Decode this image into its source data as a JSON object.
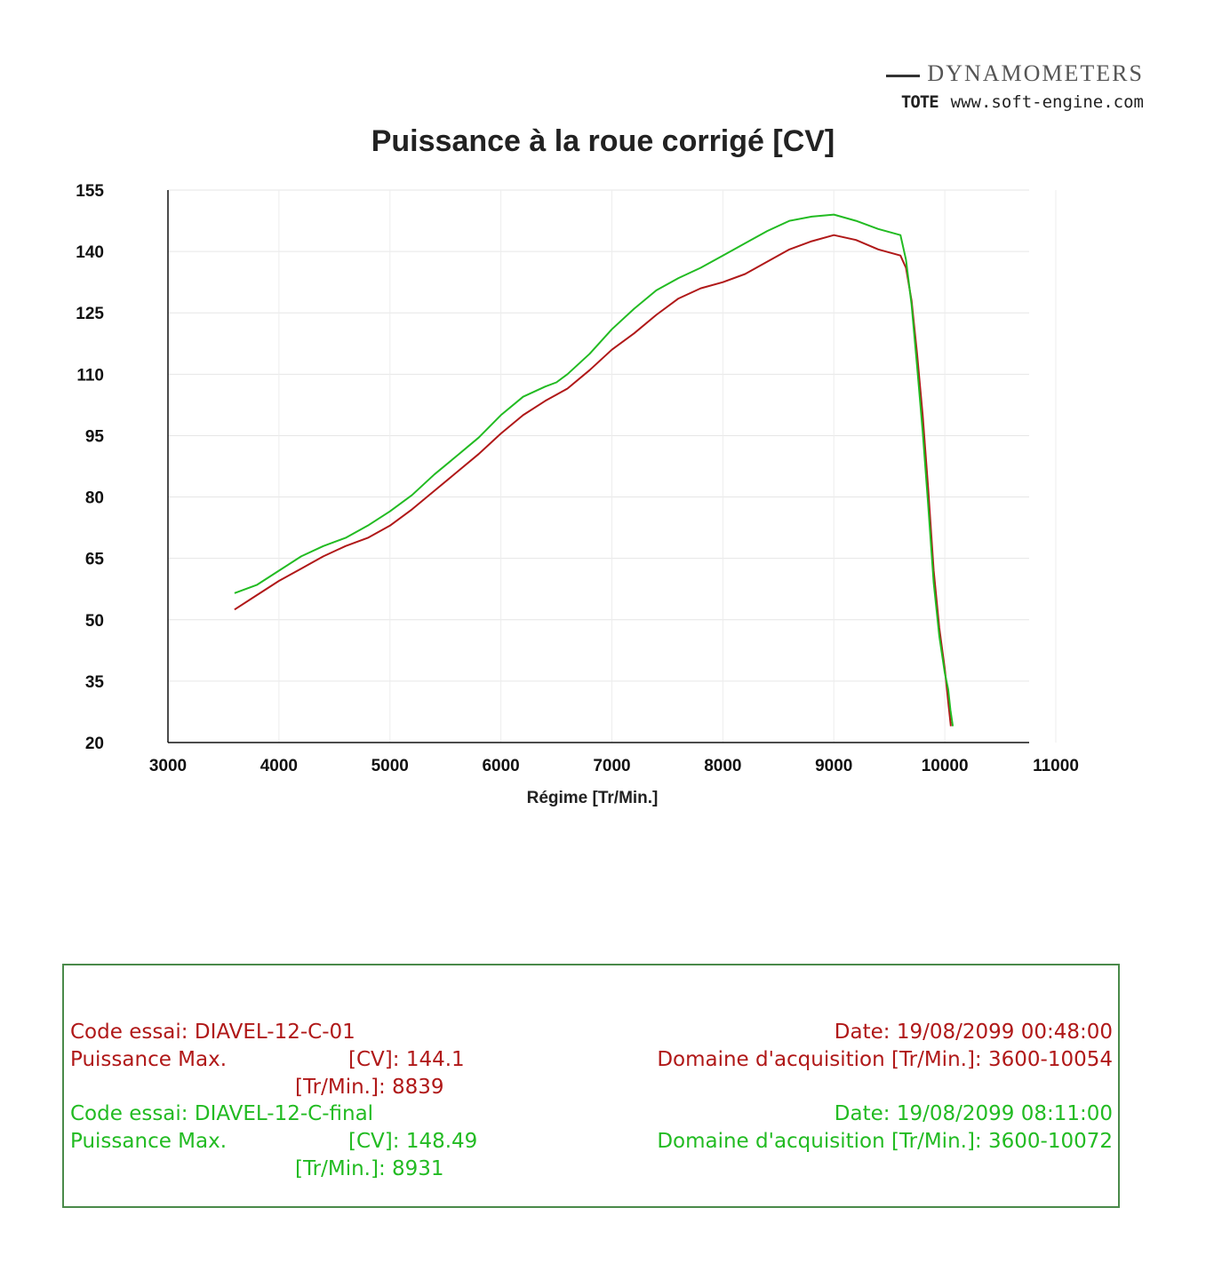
{
  "brand": {
    "name": "DYNAMOMETERS",
    "logo": "TOTE",
    "url": "www.soft-engine.com"
  },
  "chart_data": {
    "type": "line",
    "title": "Puissance à la roue corrigé [CV]",
    "xlabel": "Régime [Tr/Min.]",
    "ylabel": "",
    "xlim": [
      3000,
      11000
    ],
    "ylim": [
      20,
      155
    ],
    "xticks": [
      "3000",
      "4000",
      "5000",
      "6000",
      "7000",
      "8000",
      "9000",
      "10000",
      "11000"
    ],
    "yticks": [
      "155",
      "140",
      "125",
      "110",
      "95",
      "80",
      "65",
      "50",
      "35",
      "20"
    ],
    "series": [
      {
        "color": "#b01818",
        "x": [
          3600,
          3800,
          4000,
          4200,
          4400,
          4600,
          4800,
          5000,
          5200,
          5400,
          5600,
          5800,
          6000,
          6200,
          6400,
          6500,
          6600,
          6800,
          7000,
          7200,
          7400,
          7600,
          7800,
          8000,
          8200,
          8400,
          8600,
          8800,
          9000,
          9200,
          9400,
          9600,
          9650,
          9700,
          9750,
          9800,
          9850,
          9900,
          9950,
          10000,
          10030,
          10054
        ],
        "values": [
          52.5,
          56,
          59.5,
          62.5,
          65.5,
          68,
          70,
          73,
          77,
          81.5,
          86,
          90.5,
          95.5,
          100,
          103.5,
          105,
          106.5,
          111,
          116,
          120,
          124.5,
          128.5,
          131,
          132.5,
          134.5,
          137.5,
          140.5,
          142.5,
          144,
          142.8,
          140.5,
          139,
          136,
          128,
          115,
          100,
          82,
          62,
          48,
          38,
          30,
          24
        ]
      },
      {
        "color": "#22bb22",
        "x": [
          3600,
          3800,
          4000,
          4200,
          4400,
          4600,
          4800,
          5000,
          5200,
          5400,
          5600,
          5800,
          6000,
          6200,
          6400,
          6500,
          6600,
          6800,
          7000,
          7200,
          7400,
          7600,
          7800,
          8000,
          8200,
          8400,
          8600,
          8800,
          9000,
          9200,
          9400,
          9600,
          9650,
          9700,
          9750,
          9800,
          9850,
          9900,
          9950,
          10000,
          10030,
          10050,
          10072
        ],
        "values": [
          56.5,
          58.5,
          62,
          65.5,
          68,
          70,
          73,
          76.5,
          80.5,
          85.5,
          90,
          94.5,
          100,
          104.5,
          107,
          108,
          110,
          115,
          121,
          126,
          130.5,
          133.5,
          136,
          139,
          142,
          145,
          147.5,
          148.5,
          149,
          147.5,
          145.5,
          144,
          138,
          127,
          112,
          96,
          78,
          59,
          46,
          37,
          33,
          28,
          24
        ]
      }
    ]
  },
  "runs": [
    {
      "code_label": "Code essai:",
      "code_value": "DIAVEL-12-C-01",
      "puissance_label": "Puissance Max.",
      "cv_label": "[CV]:",
      "cv_value": "144.1",
      "rpm_label": "[Tr/Min.]:",
      "rpm_value": "8839",
      "date_label": "Date:",
      "date_value": "19/08/2099 00:48:00",
      "domaine_label": "Domaine d'acquisition [Tr/Min.]:",
      "domaine_value": "3600-10054"
    },
    {
      "code_label": "Code essai:",
      "code_value": "DIAVEL-12-C-final",
      "puissance_label": "Puissance Max.",
      "cv_label": "[CV]:",
      "cv_value": "148.49",
      "rpm_label": "[Tr/Min.]:",
      "rpm_value": "8931",
      "date_label": "Date:",
      "date_value": "19/08/2099 08:11:00",
      "domaine_label": "Domaine d'acquisition [Tr/Min.]:",
      "domaine_value": "3600-10072"
    }
  ]
}
